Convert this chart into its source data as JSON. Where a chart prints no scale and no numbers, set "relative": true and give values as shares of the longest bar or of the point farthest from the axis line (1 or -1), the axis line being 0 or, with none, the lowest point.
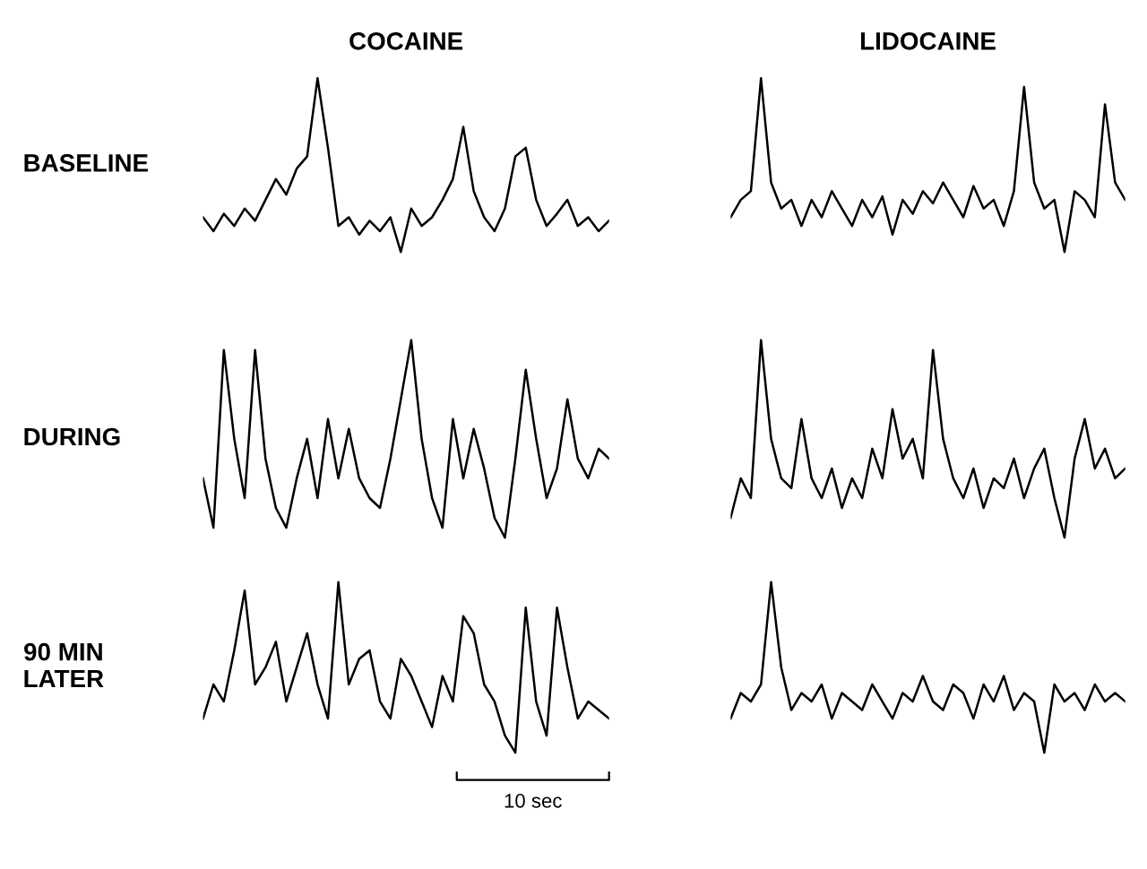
{
  "chart_data": [
    {
      "type": "line",
      "title": "COCAINE",
      "ylabel": "BASELINE",
      "relative": true,
      "categories": [
        null,
        null,
        null,
        null,
        null,
        null,
        null,
        null,
        null,
        null,
        null,
        null,
        null,
        null,
        null,
        null,
        null,
        null,
        null,
        null,
        null,
        null,
        null,
        null,
        null,
        null,
        null,
        null,
        null,
        null,
        null,
        null,
        null,
        null,
        null,
        null,
        null,
        null,
        null,
        null
      ],
      "series": [
        {
          "color": "#000000",
          "values": [
            0.2,
            0.12,
            0.22,
            0.15,
            0.25,
            0.18,
            0.3,
            0.42,
            0.33,
            0.48,
            0.55,
            1.0,
            0.6,
            0.15,
            0.2,
            0.1,
            0.18,
            0.12,
            0.2,
            0.0,
            0.25,
            0.15,
            0.2,
            0.3,
            0.42,
            0.72,
            0.35,
            0.2,
            0.12,
            0.25,
            0.55,
            0.6,
            0.3,
            0.15,
            0.22,
            0.3,
            0.15,
            0.2,
            0.12,
            0.18
          ]
        }
      ]
    },
    {
      "type": "line",
      "title": "LIDOCAINE",
      "relative": true,
      "categories": [
        null,
        null,
        null,
        null,
        null,
        null,
        null,
        null,
        null,
        null,
        null,
        null,
        null,
        null,
        null,
        null,
        null,
        null,
        null,
        null,
        null,
        null,
        null,
        null,
        null,
        null,
        null,
        null,
        null,
        null,
        null,
        null,
        null,
        null,
        null,
        null,
        null,
        null,
        null,
        null
      ],
      "series": [
        {
          "color": "#000000",
          "values": [
            0.2,
            0.3,
            0.35,
            1.0,
            0.4,
            0.25,
            0.3,
            0.15,
            0.3,
            0.2,
            0.35,
            0.25,
            0.15,
            0.3,
            0.2,
            0.32,
            0.1,
            0.3,
            0.22,
            0.35,
            0.28,
            0.4,
            0.3,
            0.2,
            0.38,
            0.25,
            0.3,
            0.15,
            0.35,
            0.95,
            0.4,
            0.25,
            0.3,
            0.0,
            0.35,
            0.3,
            0.2,
            0.85,
            0.4,
            0.3
          ]
        }
      ]
    },
    {
      "type": "line",
      "ylabel": "DURING",
      "relative": true,
      "categories": [
        null,
        null,
        null,
        null,
        null,
        null,
        null,
        null,
        null,
        null,
        null,
        null,
        null,
        null,
        null,
        null,
        null,
        null,
        null,
        null,
        null,
        null,
        null,
        null,
        null,
        null,
        null,
        null,
        null,
        null,
        null,
        null,
        null,
        null,
        null,
        null,
        null,
        null,
        null,
        null
      ],
      "series": [
        {
          "color": "#000000",
          "values": [
            0.3,
            0.05,
            0.95,
            0.5,
            0.2,
            0.95,
            0.4,
            0.15,
            0.05,
            0.3,
            0.5,
            0.2,
            0.6,
            0.3,
            0.55,
            0.3,
            0.2,
            0.15,
            0.4,
            0.7,
            1.0,
            0.5,
            0.2,
            0.05,
            0.6,
            0.3,
            0.55,
            0.35,
            0.1,
            0.0,
            0.4,
            0.85,
            0.5,
            0.2,
            0.35,
            0.7,
            0.4,
            0.3,
            0.45,
            0.4
          ]
        }
      ]
    },
    {
      "type": "line",
      "relative": true,
      "categories": [
        null,
        null,
        null,
        null,
        null,
        null,
        null,
        null,
        null,
        null,
        null,
        null,
        null,
        null,
        null,
        null,
        null,
        null,
        null,
        null,
        null,
        null,
        null,
        null,
        null,
        null,
        null,
        null,
        null,
        null,
        null,
        null,
        null,
        null,
        null,
        null,
        null,
        null,
        null,
        null
      ],
      "series": [
        {
          "color": "#000000",
          "values": [
            0.1,
            0.3,
            0.2,
            1.0,
            0.5,
            0.3,
            0.25,
            0.6,
            0.3,
            0.2,
            0.35,
            0.15,
            0.3,
            0.2,
            0.45,
            0.3,
            0.65,
            0.4,
            0.5,
            0.3,
            0.95,
            0.5,
            0.3,
            0.2,
            0.35,
            0.15,
            0.3,
            0.25,
            0.4,
            0.2,
            0.35,
            0.45,
            0.2,
            0.0,
            0.4,
            0.6,
            0.35,
            0.45,
            0.3,
            0.35
          ]
        }
      ]
    },
    {
      "type": "line",
      "ylabel": "90 MIN\nLATER",
      "relative": true,
      "annotations": [
        "10 sec"
      ],
      "categories": [
        null,
        null,
        null,
        null,
        null,
        null,
        null,
        null,
        null,
        null,
        null,
        null,
        null,
        null,
        null,
        null,
        null,
        null,
        null,
        null,
        null,
        null,
        null,
        null,
        null,
        null,
        null,
        null,
        null,
        null,
        null,
        null,
        null,
        null,
        null,
        null,
        null,
        null,
        null,
        null
      ],
      "series": [
        {
          "color": "#000000",
          "values": [
            0.2,
            0.4,
            0.3,
            0.6,
            0.95,
            0.4,
            0.5,
            0.65,
            0.3,
            0.5,
            0.7,
            0.4,
            0.2,
            1.0,
            0.4,
            0.55,
            0.6,
            0.3,
            0.2,
            0.55,
            0.45,
            0.3,
            0.15,
            0.45,
            0.3,
            0.8,
            0.7,
            0.4,
            0.3,
            0.1,
            0.0,
            0.85,
            0.3,
            0.1,
            0.85,
            0.5,
            0.2,
            0.3,
            0.25,
            0.2
          ]
        }
      ]
    },
    {
      "type": "line",
      "relative": true,
      "categories": [
        null,
        null,
        null,
        null,
        null,
        null,
        null,
        null,
        null,
        null,
        null,
        null,
        null,
        null,
        null,
        null,
        null,
        null,
        null,
        null,
        null,
        null,
        null,
        null,
        null,
        null,
        null,
        null,
        null,
        null,
        null,
        null,
        null,
        null,
        null,
        null,
        null,
        null,
        null,
        null
      ],
      "series": [
        {
          "color": "#000000",
          "values": [
            0.2,
            0.35,
            0.3,
            0.4,
            1.0,
            0.5,
            0.25,
            0.35,
            0.3,
            0.4,
            0.2,
            0.35,
            0.3,
            0.25,
            0.4,
            0.3,
            0.2,
            0.35,
            0.3,
            0.45,
            0.3,
            0.25,
            0.4,
            0.35,
            0.2,
            0.4,
            0.3,
            0.45,
            0.25,
            0.35,
            0.3,
            0.0,
            0.4,
            0.3,
            0.35,
            0.25,
            0.4,
            0.3,
            0.35,
            0.3
          ]
        }
      ]
    }
  ]
}
